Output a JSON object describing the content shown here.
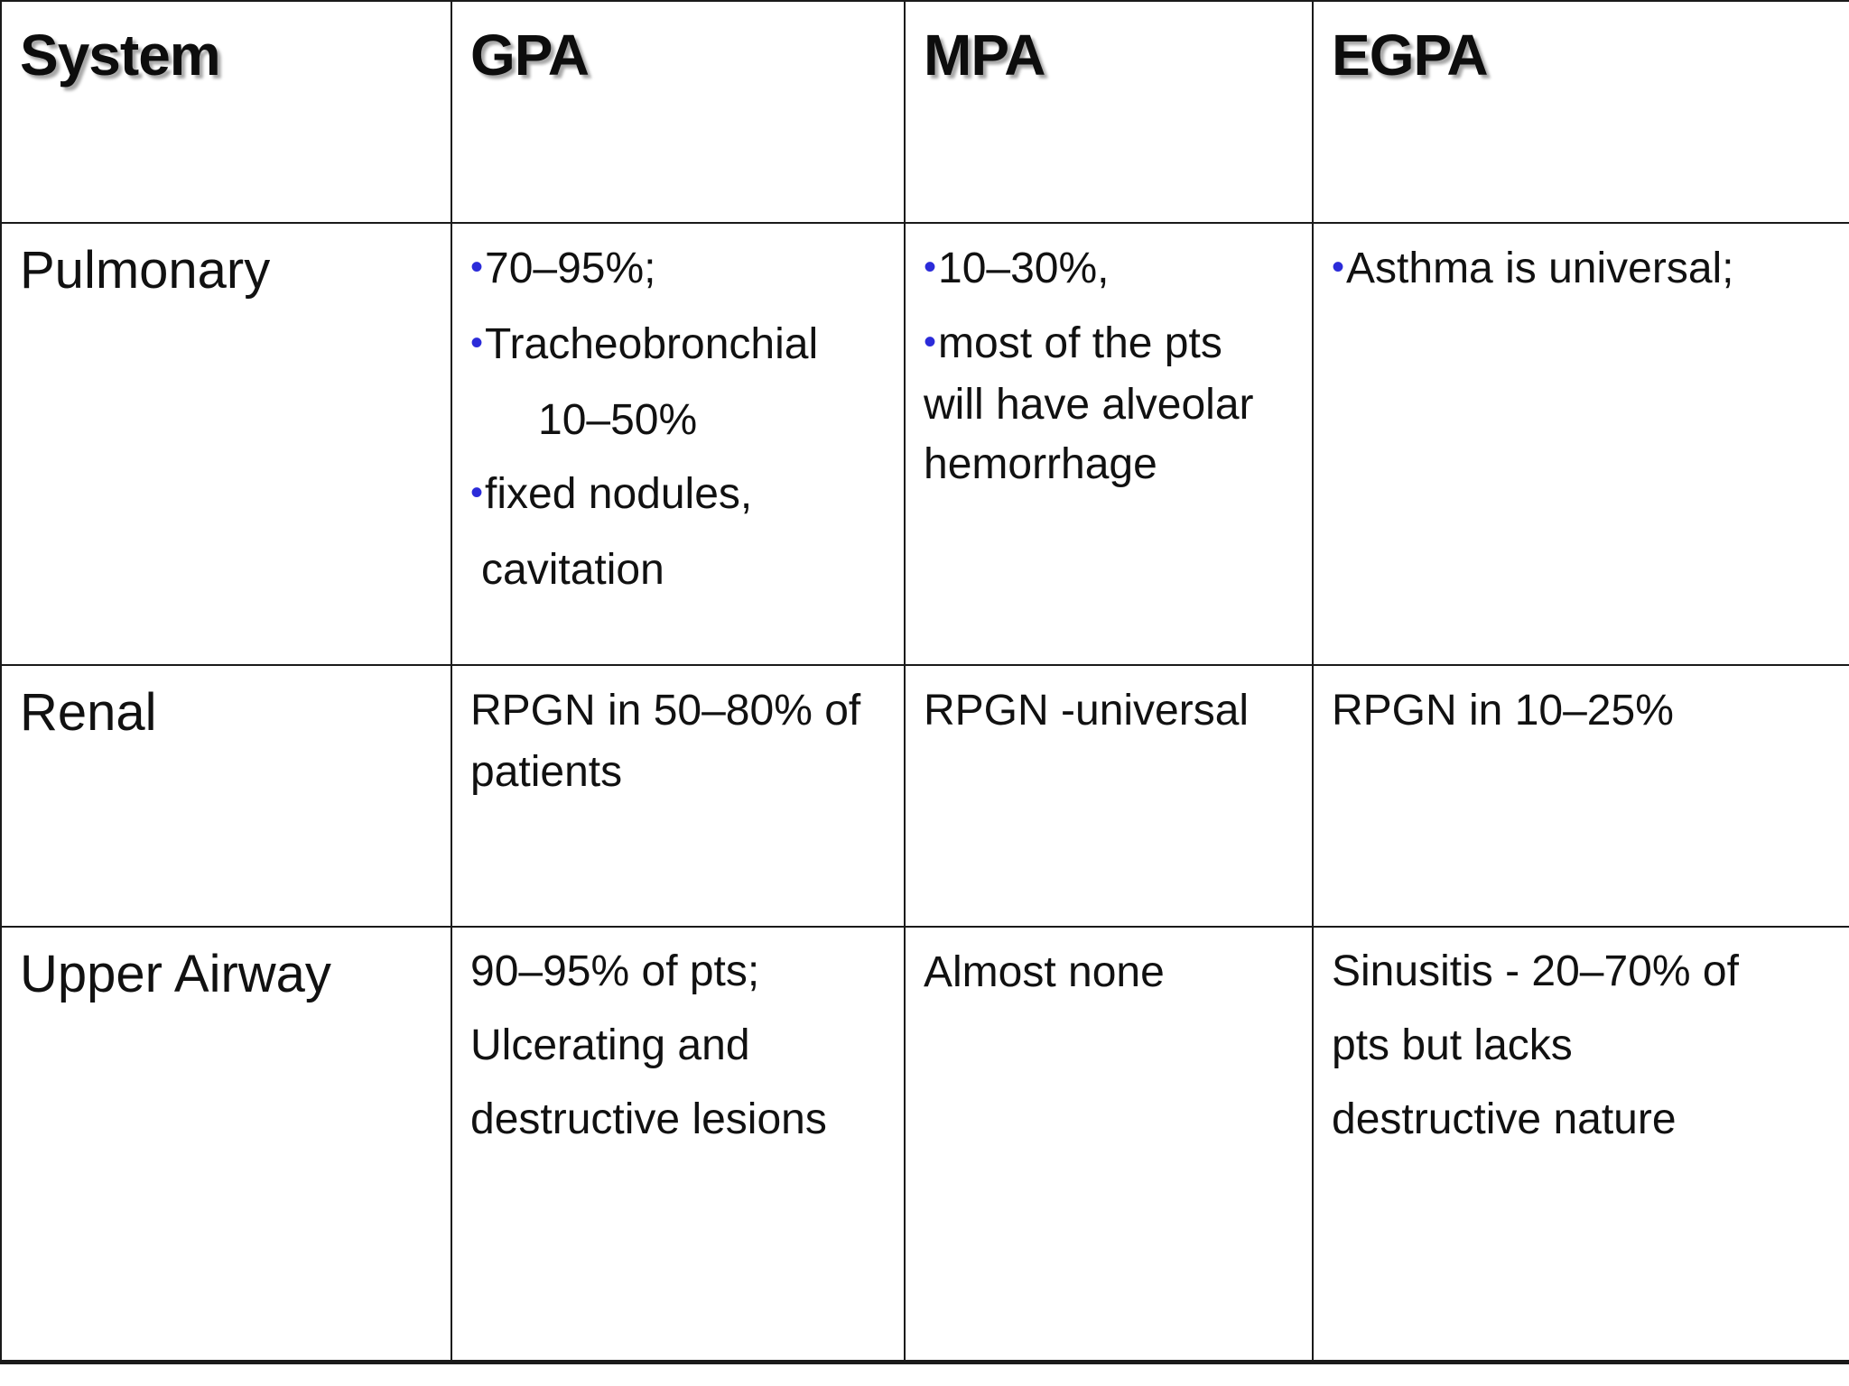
{
  "table": {
    "headers": [
      "System",
      "GPA",
      "MPA",
      "EGPA"
    ],
    "rows": [
      {
        "system": "Pulmonary",
        "gpa": {
          "items": [
            {
              "bullet": true,
              "text": "70–95%;"
            },
            {
              "bullet": true,
              "text": "Tracheobronchial"
            },
            {
              "bullet": false,
              "text": "10–50%"
            },
            {
              "bullet": true,
              "text": "fixed nodules,"
            },
            {
              "bullet": false,
              "text": "cavitation"
            }
          ]
        },
        "mpa": {
          "items": [
            {
              "bullet": true,
              "text": "10–30%,"
            },
            {
              "bullet": true,
              "text": "most of the pts will have alveolar hemorrhage"
            }
          ]
        },
        "egpa": {
          "items": [
            {
              "bullet": true,
              "text": "Asthma is universal;"
            }
          ]
        }
      },
      {
        "system": "Renal",
        "gpa": "RPGN in 50–80% of patients",
        "mpa": "RPGN -universal",
        "egpa": "RPGN in 10–25%"
      },
      {
        "system": "Upper Airway",
        "gpa": "90–95% of  pts; Ulcerating and destructive lesions",
        "mpa": "Almost none",
        "egpa": "Sinusitis - 20–70% of pts but  lacks destructive nature"
      }
    ],
    "bullet_symbol": "•",
    "bullet_color": "#2b2bd9",
    "border_color": "#1a1a1a"
  }
}
